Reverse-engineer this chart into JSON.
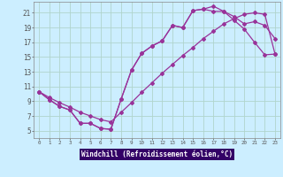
{
  "xlabel": "Windchill (Refroidissement éolien,°C)",
  "bg_color": "#cceeff",
  "grid_color": "#b0d4cc",
  "line_color": "#993399",
  "xlabel_bg": "#330066",
  "xlabel_fg": "#ffffff",
  "xlim": [
    -0.5,
    23.5
  ],
  "ylim": [
    4,
    22.5
  ],
  "xticks": [
    0,
    1,
    2,
    3,
    4,
    5,
    6,
    7,
    8,
    9,
    10,
    11,
    12,
    13,
    14,
    15,
    16,
    17,
    18,
    19,
    20,
    21,
    22,
    23
  ],
  "yticks": [
    5,
    7,
    9,
    11,
    13,
    15,
    17,
    19,
    21
  ],
  "line1_x": [
    0,
    1,
    2,
    3,
    4,
    5,
    6,
    7,
    8,
    9,
    10,
    11,
    12,
    13,
    14,
    15,
    16,
    17,
    18,
    19,
    20,
    21,
    22,
    23
  ],
  "line1_y": [
    10.3,
    9.2,
    8.3,
    7.8,
    6.0,
    6.0,
    5.3,
    5.2,
    9.3,
    13.2,
    15.5,
    16.5,
    17.2,
    19.3,
    19.0,
    21.3,
    21.5,
    21.9,
    21.2,
    20.0,
    18.8,
    17.0,
    15.3,
    15.4
  ],
  "line2_x": [
    0,
    1,
    2,
    3,
    4,
    5,
    6,
    7,
    8,
    9,
    10,
    11,
    12,
    13,
    14,
    15,
    16,
    17,
    18,
    19,
    20,
    21,
    22,
    23
  ],
  "line2_y": [
    10.3,
    9.2,
    8.3,
    7.8,
    6.0,
    6.0,
    5.3,
    5.2,
    9.3,
    13.2,
    15.5,
    16.5,
    17.2,
    19.3,
    19.0,
    21.3,
    21.5,
    21.2,
    21.2,
    20.5,
    19.5,
    19.8,
    19.3,
    17.5
  ],
  "line3_x": [
    0,
    1,
    2,
    3,
    4,
    5,
    6,
    7,
    8,
    9,
    10,
    11,
    12,
    13,
    14,
    15,
    16,
    17,
    18,
    19,
    20,
    21,
    22,
    23
  ],
  "line3_y": [
    10.3,
    9.5,
    8.8,
    8.2,
    7.5,
    7.0,
    6.5,
    6.2,
    7.5,
    8.8,
    10.2,
    11.5,
    12.8,
    14.0,
    15.2,
    16.3,
    17.5,
    18.5,
    19.5,
    20.2,
    20.8,
    21.0,
    20.8,
    15.4
  ]
}
